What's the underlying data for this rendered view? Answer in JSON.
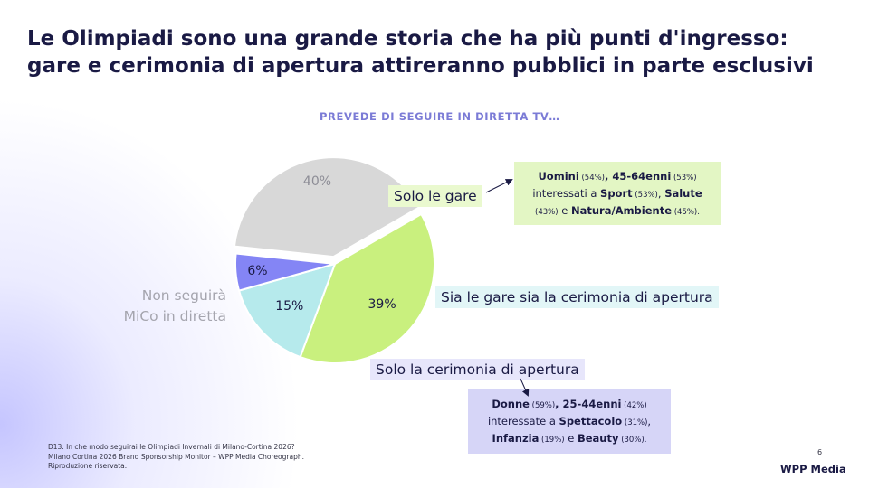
{
  "title": "Le Olimpiadi sono una grande storia che ha più punti d'ingresso:\ngare e cerimonia di apertura attireranno pubblici in parte esclusivi",
  "colors": {
    "solo_gare": "#c9f07e",
    "gare_e_cerimonia": "#b6eaec",
    "solo_cerimonia": "#8485f5",
    "non_seguira": "#d8d8d8",
    "accent": "#7b7bd6"
  },
  "chart_data": {
    "type": "pie",
    "title": "PREVEDE DI SEGUIRE IN DIRETTA TV…",
    "categories": [
      "Solo le gare",
      "Sia le gare sia la cerimonia di apertura",
      "Solo la cerimonia di apertura",
      "Non seguirà MiCo in diretta"
    ],
    "values": [
      39,
      15,
      6,
      40
    ],
    "value_labels": [
      "39%",
      "15%",
      "6%",
      "40%"
    ],
    "start_angle_deg": -30,
    "exploded_category": "Non seguirà MiCo in diretta",
    "outer_label": "Non seguirà\nMiCo in diretta"
  },
  "callouts": {
    "solo_gare": [
      [
        {
          "t": "Uomini",
          "c": "hl"
        },
        {
          "t": " (54%)",
          "c": "sm"
        },
        {
          "t": ", ",
          "c": "hl"
        },
        {
          "t": "45-64enni",
          "c": "hl"
        },
        {
          "t": " (53%)",
          "c": "sm"
        }
      ],
      [
        {
          "t": "interessati a ",
          "c": ""
        },
        {
          "t": "Sport",
          "c": "hl"
        },
        {
          "t": " (53%)",
          "c": "sm"
        },
        {
          "t": ", ",
          "c": ""
        },
        {
          "t": "Salute",
          "c": "hl"
        }
      ],
      [
        {
          "t": "(43%)",
          "c": "sm"
        },
        {
          "t": " e ",
          "c": ""
        },
        {
          "t": "Natura/Ambiente",
          "c": "hl"
        },
        {
          "t": " (45%).",
          "c": "sm"
        }
      ]
    ],
    "solo_cerimonia": [
      [
        {
          "t": "Donne",
          "c": "hl"
        },
        {
          "t": " (59%)",
          "c": "sm"
        },
        {
          "t": ", ",
          "c": "hl"
        },
        {
          "t": "25-44enni",
          "c": "hl"
        },
        {
          "t": " (42%)",
          "c": "sm"
        }
      ],
      [
        {
          "t": "interessate a ",
          "c": ""
        },
        {
          "t": "Spettacolo",
          "c": "hl"
        },
        {
          "t": " (31%)",
          "c": "sm"
        },
        {
          "t": ",",
          "c": ""
        }
      ],
      [
        {
          "t": "Infanzia",
          "c": "hl"
        },
        {
          "t": " (19%)",
          "c": "sm"
        },
        {
          "t": " e ",
          "c": ""
        },
        {
          "t": "Beauty",
          "c": "hl"
        },
        {
          "t": " (30%).",
          "c": "sm"
        }
      ]
    ]
  },
  "footnote": {
    "line1": "D13. In che modo seguirai le Olimpiadi Invernali di Milano-Cortina 2026?",
    "line2": "Milano Cortina 2026 Brand Sponsorship Monitor – WPP Media Choreograph.",
    "line3": "Riproduzione riservata."
  },
  "page_number": "6",
  "logo": "WPP Media"
}
